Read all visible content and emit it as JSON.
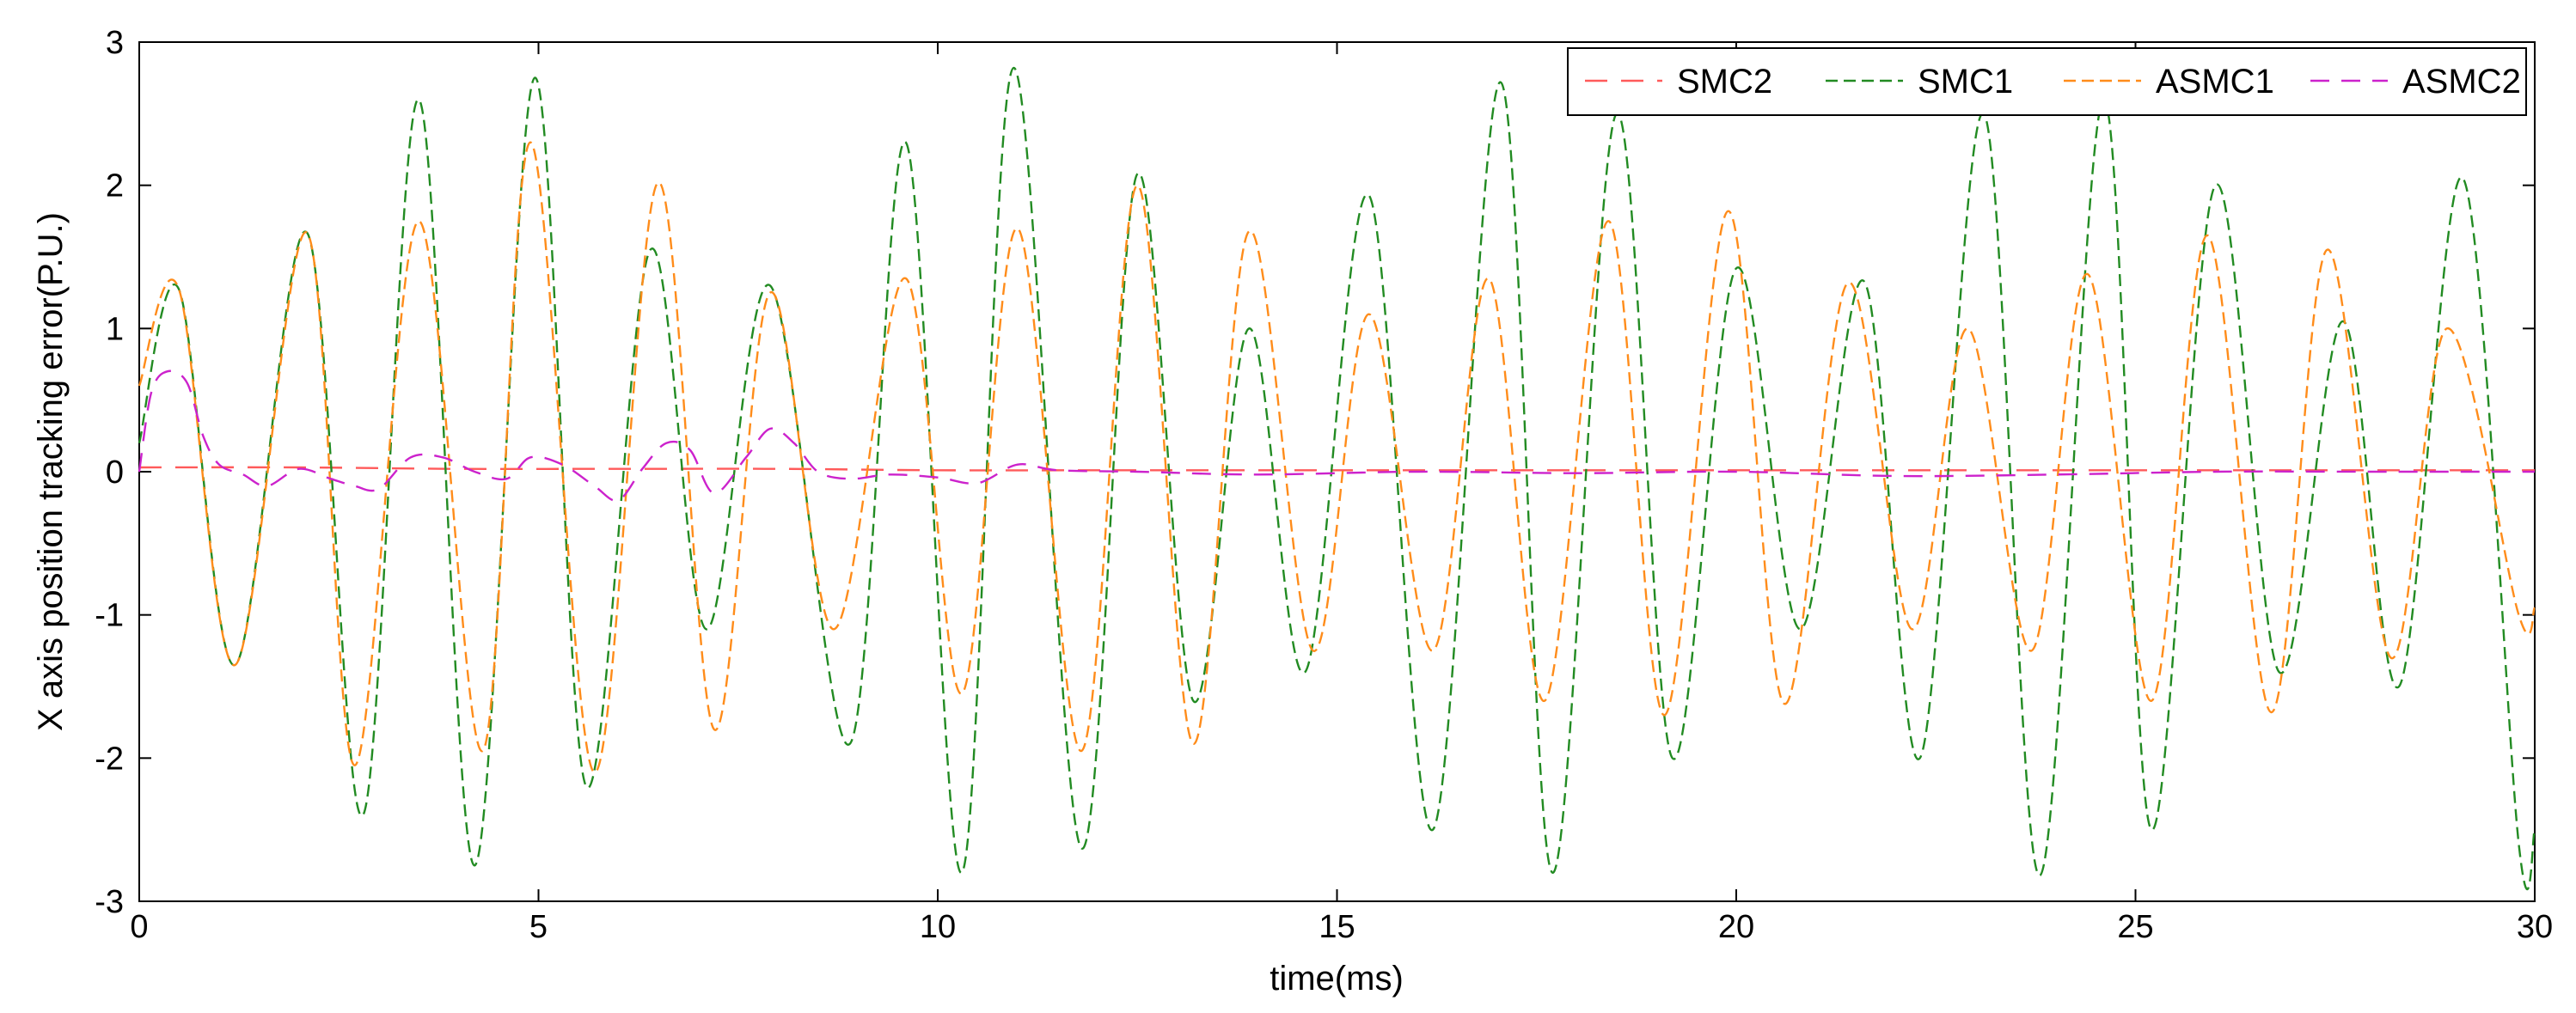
{
  "chart_data": {
    "type": "line",
    "title": "",
    "xlabel": "time(ms)",
    "ylabel": "X axis position tracking error(P.U.)",
    "xlim": [
      0,
      30
    ],
    "ylim": [
      -3,
      3
    ],
    "xticks": [
      0,
      5,
      10,
      15,
      20,
      25,
      30
    ],
    "yticks": [
      -3,
      -2,
      -1,
      0,
      1,
      2,
      3
    ],
    "grid": false,
    "legend_position": "top-right",
    "series": [
      {
        "name": "SMC2",
        "color": "#ff5a5a",
        "x": [
          0,
          2,
          4,
          6,
          8,
          10,
          12,
          14,
          16,
          18,
          20,
          22,
          24,
          26,
          28,
          30
        ],
        "y": [
          0.03,
          0.03,
          0.02,
          0.02,
          0.02,
          0.01,
          0.01,
          0.01,
          0.01,
          0.01,
          0.01,
          0.01,
          0.01,
          0.01,
          0.01,
          0.01
        ]
      },
      {
        "name": "SMC1",
        "color": "#228b22",
        "x": [
          0,
          0.5,
          1.2,
          2.1,
          2.8,
          3.5,
          4.2,
          4.95,
          5.6,
          6.4,
          7.1,
          7.9,
          8.9,
          9.6,
          10.3,
          10.95,
          11.8,
          12.5,
          13.2,
          13.9,
          14.6,
          15.4,
          16.2,
          17.05,
          17.7,
          18.5,
          19.2,
          20.0,
          20.8,
          21.6,
          22.3,
          23.1,
          23.8,
          24.6,
          25.2,
          26.0,
          26.8,
          27.6,
          28.3,
          29.1,
          29.8,
          30.0
        ],
        "y": [
          0.2,
          1.27,
          -1.35,
          1.67,
          -2.4,
          2.6,
          -2.75,
          2.75,
          -2.2,
          1.55,
          -1.1,
          1.3,
          -1.9,
          2.3,
          -2.8,
          2.82,
          -2.63,
          2.08,
          -1.6,
          1.0,
          -1.4,
          1.93,
          -2.5,
          2.72,
          -2.8,
          2.5,
          -2.0,
          1.42,
          -1.1,
          1.33,
          -2.0,
          2.5,
          -2.82,
          2.6,
          -2.5,
          2.0,
          -1.4,
          1.05,
          -1.5,
          2.05,
          -2.6,
          -2.5
        ]
      },
      {
        "name": "ASMC1",
        "color": "#ff8c1a",
        "x": [
          0,
          0.5,
          1.2,
          2.1,
          2.7,
          3.5,
          4.3,
          4.9,
          5.7,
          6.5,
          7.2,
          7.9,
          8.7,
          9.6,
          10.3,
          11.0,
          11.8,
          12.5,
          13.2,
          13.9,
          14.7,
          15.4,
          16.2,
          16.9,
          17.6,
          18.4,
          19.1,
          19.9,
          20.6,
          21.4,
          22.2,
          22.9,
          23.7,
          24.4,
          25.2,
          25.9,
          26.7,
          27.4,
          28.2,
          28.9,
          29.8,
          30.0
        ],
        "y": [
          0.6,
          1.27,
          -1.35,
          1.67,
          -2.05,
          1.75,
          -1.95,
          2.3,
          -2.1,
          2.02,
          -1.8,
          1.25,
          -1.1,
          1.35,
          -1.55,
          1.7,
          -1.95,
          2.0,
          -1.9,
          1.68,
          -1.25,
          1.1,
          -1.25,
          1.35,
          -1.6,
          1.75,
          -1.7,
          1.82,
          -1.62,
          1.32,
          -1.1,
          1.0,
          -1.25,
          1.38,
          -1.6,
          1.65,
          -1.68,
          1.55,
          -1.3,
          1.0,
          -1.0,
          -0.95
        ]
      },
      {
        "name": "ASMC2",
        "color": "#cc22cc",
        "x": [
          0,
          0.15,
          0.35,
          0.6,
          0.8,
          1.0,
          1.3,
          1.6,
          2.0,
          2.4,
          2.7,
          3.0,
          3.4,
          3.8,
          4.2,
          4.6,
          4.9,
          5.3,
          5.7,
          6.0,
          6.3,
          6.6,
          6.9,
          7.2,
          7.6,
          7.9,
          8.2,
          8.5,
          8.9,
          9.4,
          10.0,
          10.5,
          11.0,
          11.5,
          12.5,
          14,
          16,
          18,
          20,
          22,
          24,
          26,
          28,
          30
        ],
        "y": [
          0.0,
          0.55,
          0.7,
          0.62,
          0.25,
          0.05,
          -0.02,
          -0.1,
          0.02,
          -0.05,
          -0.1,
          -0.12,
          0.1,
          0.1,
          0.0,
          -0.05,
          0.1,
          0.05,
          -0.1,
          -0.2,
          0.02,
          0.2,
          0.15,
          -0.15,
          0.1,
          0.3,
          0.2,
          0.0,
          -0.05,
          -0.02,
          -0.04,
          -0.08,
          0.05,
          0.01,
          0.0,
          -0.02,
          0.0,
          -0.01,
          0.0,
          -0.03,
          -0.02,
          0.0,
          0.0,
          0.0
        ]
      }
    ]
  }
}
